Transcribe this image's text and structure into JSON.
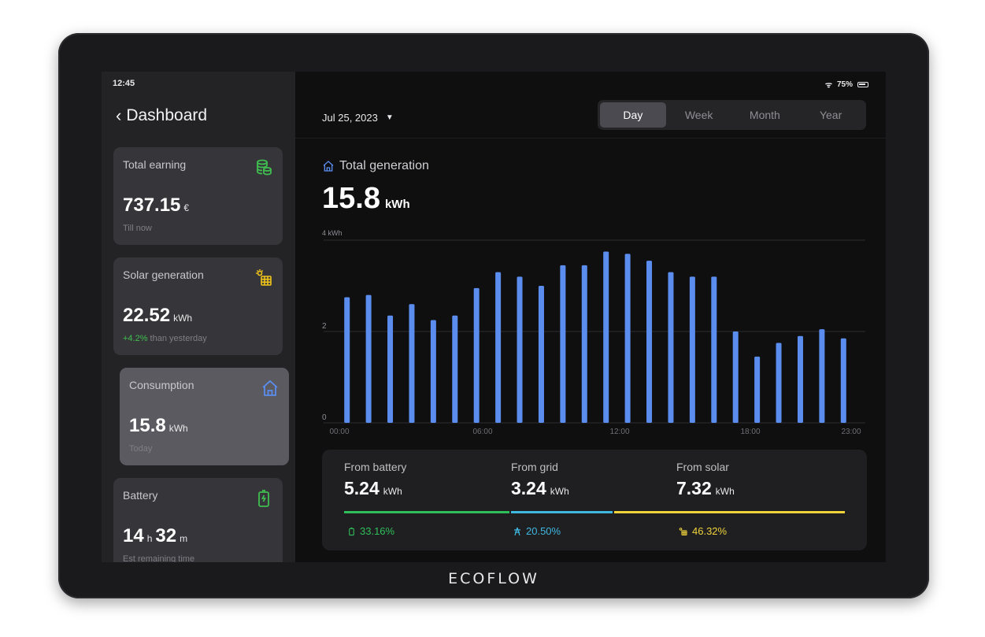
{
  "status": {
    "time": "12:45",
    "battery": "75%"
  },
  "sidebar": {
    "title": "Dashboard",
    "cards": [
      {
        "label": "Total earning",
        "value": "737.15",
        "unit": "€",
        "sub": "Till now",
        "icon": "coins-icon",
        "color": "#3fbf4f"
      },
      {
        "label": "Solar generation",
        "value": "22.52",
        "unit": "kWh",
        "sub_highlight": "+4.2%",
        "sub": " than yesterday",
        "icon": "solar-panel-icon",
        "color": "#f0c419"
      },
      {
        "label": "Consumption",
        "value": "15.8",
        "unit": "kWh",
        "sub": "Today",
        "icon": "home-icon",
        "color": "#5b8def"
      },
      {
        "label": "Battery",
        "value_h": "14",
        "unit_h": "h",
        "value_m": "32",
        "unit_m": "m",
        "sub": "Est remaining time",
        "icon": "battery-icon",
        "color": "#3fbf4f"
      }
    ]
  },
  "main": {
    "date": "Jul 25, 2023",
    "tabs": [
      "Day",
      "Week",
      "Month",
      "Year"
    ],
    "active_tab": "Day",
    "generation_label": "Total generation",
    "generation_value": "15.8",
    "generation_unit": "kWh"
  },
  "chart_data": {
    "type": "bar",
    "ylabel": "kWh",
    "ytick_unit_label": "4 kWh",
    "ylim": [
      0,
      4
    ],
    "yticks": [
      0,
      2,
      4
    ],
    "x_tick_labels": [
      "00:00",
      "06:00",
      "12:00",
      "18:00",
      "23:00"
    ],
    "values": [
      2.75,
      2.8,
      2.35,
      2.6,
      2.25,
      2.35,
      2.95,
      3.3,
      3.2,
      3.0,
      3.45,
      3.45,
      3.75,
      3.7,
      3.55,
      3.3,
      3.2,
      3.2,
      2.0,
      1.45,
      1.75,
      1.9,
      2.05,
      1.85
    ],
    "color": "#5b8def",
    "grid": true
  },
  "summary": {
    "sources": [
      {
        "label": "From battery",
        "value": "5.24",
        "unit": "kWh",
        "pct": "33.16%",
        "color": "#2fbf5a",
        "share": 0.3316,
        "icon": "battery-icon"
      },
      {
        "label": "From grid",
        "value": "3.24",
        "unit": "kWh",
        "pct": "20.50%",
        "color": "#3fb8e0",
        "share": 0.205,
        "icon": "grid-tower-icon"
      },
      {
        "label": "From solar",
        "value": "7.32",
        "unit": "kWh",
        "pct": "46.32%",
        "color": "#f0d33a",
        "share": 0.4632,
        "icon": "solar-panel-icon"
      }
    ]
  },
  "brand": "ECOFLOW"
}
